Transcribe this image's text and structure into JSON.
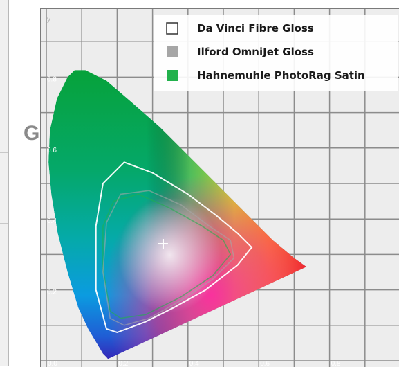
{
  "page_text": {
    "gr": "Gr"
  },
  "chart_data": {
    "type": "scatter",
    "title": "",
    "xlabel": "",
    "ylabel": "y",
    "xlim": [
      0.0,
      0.9
    ],
    "ylim": [
      0.0,
      0.9
    ],
    "grid": true,
    "legend_position": "top-right",
    "x_ticks": [
      "0.0",
      "0.2",
      "0.4",
      "0.6",
      "0.8"
    ],
    "y_ticks": [
      "0.2",
      "0.4",
      "0.6",
      "0.8"
    ],
    "white_point": {
      "x": 0.33,
      "y": 0.33
    },
    "series": [
      {
        "name": "Da Vinci Fibre Gloss",
        "color": "#ffffff",
        "x": [
          0.17,
          0.14,
          0.14,
          0.16,
          0.22,
          0.3,
          0.4,
          0.48,
          0.54,
          0.58,
          0.54,
          0.45,
          0.36,
          0.28,
          0.2,
          0.17
        ],
        "y": [
          0.09,
          0.2,
          0.38,
          0.5,
          0.56,
          0.53,
          0.47,
          0.41,
          0.36,
          0.32,
          0.27,
          0.2,
          0.15,
          0.11,
          0.08,
          0.09
        ]
      },
      {
        "name": "Ilford OmniJet Gloss",
        "color": "#a6a6a6",
        "x": [
          0.18,
          0.16,
          0.17,
          0.21,
          0.29,
          0.38,
          0.46,
          0.52,
          0.53,
          0.47,
          0.38,
          0.29,
          0.22,
          0.18
        ],
        "y": [
          0.12,
          0.25,
          0.39,
          0.47,
          0.48,
          0.44,
          0.38,
          0.34,
          0.29,
          0.23,
          0.17,
          0.12,
          0.1,
          0.12
        ]
      },
      {
        "name": "Hahnemuhle PhotoRag Satin",
        "color": "#22b14c",
        "x": [
          0.18,
          0.16,
          0.16,
          0.19,
          0.26,
          0.35,
          0.44,
          0.5,
          0.52,
          0.47,
          0.38,
          0.28,
          0.21,
          0.18
        ],
        "y": [
          0.14,
          0.26,
          0.38,
          0.45,
          0.47,
          0.43,
          0.38,
          0.34,
          0.3,
          0.24,
          0.18,
          0.13,
          0.12,
          0.14
        ]
      }
    ]
  }
}
